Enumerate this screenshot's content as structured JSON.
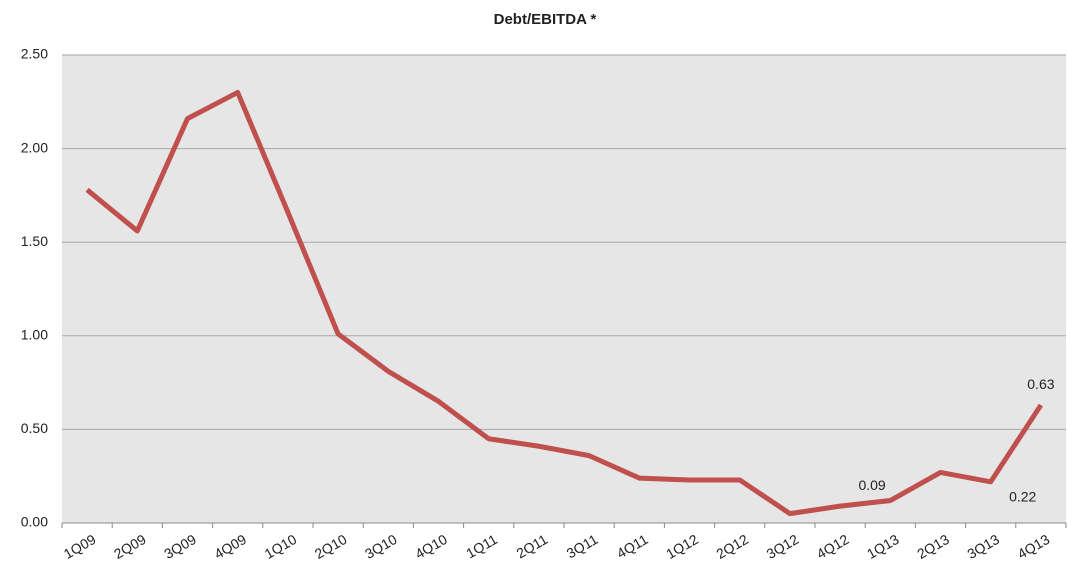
{
  "chart_data": {
    "type": "line",
    "title": "Debt/EBITDA *",
    "categories": [
      "1Q09",
      "2Q09",
      "3Q09",
      "4Q09",
      "1Q10",
      "2Q10",
      "3Q10",
      "4Q10",
      "1Q11",
      "2Q11",
      "3Q11",
      "4Q11",
      "1Q12",
      "2Q12",
      "3Q12",
      "4Q12",
      "1Q13",
      "2Q13",
      "3Q13",
      "4Q13"
    ],
    "series": [
      {
        "name": "Debt/EBITDA",
        "color": "#c0504d",
        "values": [
          1.78,
          1.56,
          2.16,
          2.3,
          1.66,
          1.01,
          0.81,
          0.65,
          0.45,
          0.41,
          0.36,
          0.24,
          0.23,
          0.23,
          0.05,
          0.09,
          0.12,
          0.27,
          0.22,
          0.63
        ],
        "value_labels": [
          null,
          null,
          null,
          null,
          null,
          null,
          null,
          null,
          null,
          null,
          null,
          null,
          null,
          null,
          null,
          "0.09",
          null,
          null,
          "0.22",
          "0.63"
        ]
      }
    ],
    "ylim": [
      0,
      2.5
    ],
    "yticks": [
      {
        "value": 0,
        "label": "0.00"
      },
      {
        "value": 0.5,
        "label": "0.50"
      },
      {
        "value": 1,
        "label": "1.00"
      },
      {
        "value": 1.5,
        "label": "1.50"
      },
      {
        "value": 2,
        "label": "2.00"
      },
      {
        "value": 2.5,
        "label": "2.50"
      }
    ],
    "grid": true
  }
}
